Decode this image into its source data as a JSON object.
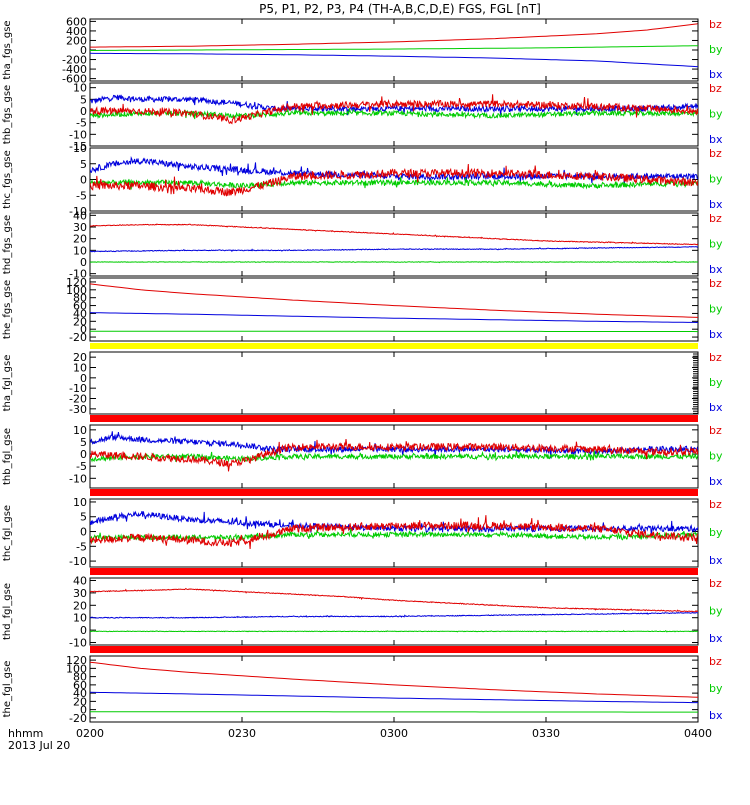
{
  "chart_data": {
    "type": "line",
    "title": "P5, P1, P2, P3, P4 (TH-A,B,C,D,E) FGS, FGL [nT]",
    "x_axis": {
      "label_top": "hhmm",
      "label_bottom": "2013 Jul 20",
      "range_minutes": [
        0,
        120
      ],
      "ticks": [
        {
          "label": "0200",
          "minute": 0
        },
        {
          "label": "0230",
          "minute": 30
        },
        {
          "label": "0300",
          "minute": 60
        },
        {
          "label": "0330",
          "minute": 90
        },
        {
          "label": "0400",
          "minute": 120
        }
      ]
    },
    "colors": {
      "bz": "#e00000",
      "by": "#00cc00",
      "bx": "#0000dd",
      "band_red": "#ff0000",
      "band_yellow": "#ffff00"
    },
    "panels": [
      {
        "ylabel": "tha_fgs_gse",
        "ylim": [
          -650,
          650
        ],
        "yticks": [
          "600",
          "400",
          "200",
          "0",
          "-200",
          "-400",
          "-600"
        ],
        "ytick_values": [
          600,
          400,
          200,
          0,
          -200,
          -400,
          -600
        ],
        "legend": [
          "bz",
          "by",
          "bx"
        ],
        "series": [
          {
            "name": "bz",
            "noise": 0,
            "x": [
              0,
              20,
              40,
              60,
              80,
              100,
              110,
              120
            ],
            "y": [
              60,
              80,
              120,
              170,
              240,
              340,
              420,
              550
            ]
          },
          {
            "name": "by",
            "noise": 0,
            "x": [
              0,
              30,
              60,
              90,
              120
            ],
            "y": [
              -10,
              5,
              20,
              45,
              90
            ]
          },
          {
            "name": "bx",
            "noise": 0,
            "x": [
              0,
              20,
              40,
              60,
              80,
              100,
              120
            ],
            "y": [
              -70,
              -80,
              -100,
              -130,
              -170,
              -230,
              -350
            ]
          }
        ]
      },
      {
        "ylabel": "thb_fgs_gse",
        "ylim": [
          -15,
          12
        ],
        "yticks": [
          "10",
          "5",
          "0",
          "-5",
          "-10",
          "-15"
        ],
        "ytick_values": [
          10,
          5,
          0,
          -5,
          -10,
          -15
        ],
        "legend": [
          "bz",
          "by",
          "bx"
        ],
        "series": [
          {
            "name": "bx",
            "noise": 1.2,
            "x": [
              0,
              5,
              10,
              20,
              30,
              36,
              40,
              60,
              80,
              100,
              110,
              120
            ],
            "y": [
              4,
              6,
              5,
              5,
              3,
              1,
              1,
              1,
              1,
              1,
              1,
              2
            ]
          },
          {
            "name": "by",
            "noise": 1.0,
            "x": [
              0,
              10,
              20,
              30,
              40,
              60,
              80,
              100,
              120
            ],
            "y": [
              -2,
              -1,
              -1,
              -2,
              -1,
              -1,
              -2,
              -1,
              -1
            ]
          },
          {
            "name": "bz",
            "noise": 1.5,
            "x": [
              0,
              10,
              20,
              28,
              32,
              36,
              40,
              60,
              80,
              100,
              110,
              120
            ],
            "y": [
              0,
              0,
              -1,
              -4,
              -2,
              0,
              2,
              3,
              3,
              2,
              1,
              0
            ]
          }
        ]
      },
      {
        "ylabel": "thc_fgs_gse",
        "ylim": [
          -10,
          10
        ],
        "yticks": [
          "10",
          "5",
          "0",
          "-5",
          "-10"
        ],
        "ytick_values": [
          10,
          5,
          0,
          -5,
          -10
        ],
        "legend": [
          "bz",
          "by",
          "bx"
        ],
        "series": [
          {
            "name": "bx",
            "noise": 1.0,
            "x": [
              0,
              5,
              10,
              20,
              30,
              40,
              60,
              80,
              100,
              110,
              120
            ],
            "y": [
              3,
              5,
              6,
              4,
              3,
              2,
              1,
              1,
              1,
              1,
              1
            ]
          },
          {
            "name": "by",
            "noise": 0.8,
            "x": [
              0,
              10,
              20,
              30,
              40,
              60,
              80,
              100,
              120
            ],
            "y": [
              -1,
              -1,
              -1,
              -2,
              -1,
              -1,
              -1,
              -2,
              -1
            ]
          },
          {
            "name": "bz",
            "noise": 1.3,
            "x": [
              0,
              10,
              20,
              28,
              36,
              40,
              60,
              80,
              100,
              110,
              120
            ],
            "y": [
              -2,
              -2,
              -3,
              -4,
              -1,
              1,
              2,
              2,
              1,
              0,
              -1
            ]
          }
        ]
      },
      {
        "ylabel": "thd_fgs_gse",
        "ylim": [
          -12,
          42
        ],
        "yticks": [
          "40",
          "30",
          "20",
          "10",
          "0",
          "-10"
        ],
        "ytick_values": [
          40,
          30,
          20,
          10,
          0,
          -10
        ],
        "legend": [
          "bz",
          "by",
          "bx"
        ],
        "series": [
          {
            "name": "bz",
            "noise": 0.3,
            "x": [
              0,
              10,
              20,
              30,
              40,
              50,
              60,
              70,
              80,
              90,
              100,
              110,
              120
            ],
            "y": [
              31,
              32,
              32,
              30,
              28,
              26,
              24,
              22,
              20,
              18,
              17,
              16,
              15
            ]
          },
          {
            "name": "bx",
            "noise": 0.3,
            "x": [
              0,
              20,
              40,
              60,
              80,
              100,
              120
            ],
            "y": [
              9,
              10,
              10,
              11,
              11,
              12,
              13
            ]
          },
          {
            "name": "by",
            "noise": 0.2,
            "x": [
              0,
              120
            ],
            "y": [
              0,
              0
            ]
          }
        ]
      },
      {
        "ylabel": "the_fgs_gse",
        "ylim": [
          -30,
          130
        ],
        "yticks": [
          "120",
          "100",
          "80",
          "60",
          "40",
          "20",
          "0",
          "-20"
        ],
        "ytick_values": [
          120,
          100,
          80,
          60,
          40,
          20,
          0,
          -20
        ],
        "legend": [
          "bz",
          "by",
          "bx"
        ],
        "series": [
          {
            "name": "bz",
            "noise": 0,
            "x": [
              0,
              10,
              20,
              30,
              40,
              60,
              80,
              100,
              120
            ],
            "y": [
              115,
              100,
              90,
              82,
              74,
              60,
              48,
              38,
              30
            ]
          },
          {
            "name": "bx",
            "noise": 0,
            "x": [
              0,
              20,
              40,
              60,
              80,
              100,
              120
            ],
            "y": [
              42,
              38,
              33,
              28,
              24,
              20,
              17
            ]
          },
          {
            "name": "by",
            "noise": 0,
            "x": [
              0,
              120
            ],
            "y": [
              -5,
              -6
            ]
          }
        ]
      },
      {
        "ylabel": "tha_fgl_gse",
        "ylim": [
          -35,
          25
        ],
        "yticks": [
          "20",
          "10",
          "0",
          "-10",
          "-20",
          "-30"
        ],
        "ytick_values": [
          20,
          10,
          0,
          -10,
          -20,
          -30
        ],
        "legend": [
          "bz",
          "by",
          "bx"
        ],
        "series": []
      },
      {
        "ylabel": "thb_fgl_gse",
        "ylim": [
          -14,
          12
        ],
        "yticks": [
          "10",
          "5",
          "0",
          "-5",
          "-10"
        ],
        "ytick_values": [
          10,
          5,
          0,
          -5,
          -10
        ],
        "legend": [
          "bz",
          "by",
          "bx"
        ],
        "series": [
          {
            "name": "bx",
            "noise": 1.2,
            "x": [
              0,
              5,
              10,
              20,
              30,
              36,
              40,
              60,
              80,
              100,
              110,
              120
            ],
            "y": [
              5,
              7,
              6,
              5,
              4,
              2,
              2,
              2,
              2,
              1,
              2,
              2
            ]
          },
          {
            "name": "by",
            "noise": 1.0,
            "x": [
              0,
              10,
              20,
              30,
              40,
              60,
              80,
              100,
              120
            ],
            "y": [
              -2,
              -1,
              -1,
              -2,
              -1,
              -1,
              -1,
              -1,
              -1
            ]
          },
          {
            "name": "bz",
            "noise": 1.5,
            "x": [
              0,
              10,
              20,
              28,
              32,
              36,
              40,
              60,
              80,
              100,
              110,
              120
            ],
            "y": [
              0,
              -1,
              -2,
              -4,
              -2,
              1,
              3,
              3,
              3,
              2,
              1,
              1
            ]
          }
        ]
      },
      {
        "ylabel": "thc_fgl_gse",
        "ylim": [
          -12,
          11
        ],
        "yticks": [
          "10",
          "5",
          "0",
          "-5",
          "-10"
        ],
        "ytick_values": [
          10,
          5,
          0,
          -5,
          -10
        ],
        "legend": [
          "bz",
          "by",
          "bx"
        ],
        "series": [
          {
            "name": "bx",
            "noise": 1.0,
            "x": [
              0,
              5,
              10,
              20,
              30,
              40,
              60,
              80,
              100,
              110,
              120
            ],
            "y": [
              3,
              5,
              6,
              4,
              3,
              2,
              1,
              1,
              1,
              1,
              1
            ]
          },
          {
            "name": "by",
            "noise": 0.8,
            "x": [
              0,
              10,
              20,
              30,
              40,
              60,
              80,
              100,
              120
            ],
            "y": [
              -2,
              -2,
              -2,
              -2,
              -1,
              -1,
              -1,
              -2,
              -1
            ]
          },
          {
            "name": "bz",
            "noise": 1.3,
            "x": [
              0,
              10,
              20,
              28,
              36,
              40,
              60,
              80,
              100,
              110,
              120
            ],
            "y": [
              -3,
              -2,
              -3,
              -4,
              -1,
              1,
              2,
              2,
              1,
              -1,
              -2
            ]
          }
        ]
      },
      {
        "ylabel": "thd_fgl_gse",
        "ylim": [
          -12,
          42
        ],
        "yticks": [
          "40",
          "30",
          "20",
          "10",
          "0",
          "-10"
        ],
        "ytick_values": [
          40,
          30,
          20,
          10,
          0,
          -10
        ],
        "legend": [
          "bz",
          "by",
          "bx"
        ],
        "series": [
          {
            "name": "bz",
            "noise": 0.3,
            "x": [
              0,
              10,
              20,
              30,
              40,
              50,
              60,
              70,
              80,
              90,
              100,
              110,
              120
            ],
            "y": [
              31,
              32,
              33,
              31,
              29,
              27,
              24,
              22,
              20,
              18,
              17,
              16,
              15
            ]
          },
          {
            "name": "bx",
            "noise": 0.3,
            "x": [
              0,
              20,
              40,
              60,
              80,
              100,
              120
            ],
            "y": [
              10,
              10,
              11,
              11,
              12,
              13,
              14
            ]
          },
          {
            "name": "by",
            "noise": 0.2,
            "x": [
              0,
              120
            ],
            "y": [
              -1,
              -1
            ]
          }
        ]
      },
      {
        "ylabel": "the_fgl_gse",
        "ylim": [
          -30,
          130
        ],
        "yticks": [
          "120",
          "100",
          "80",
          "60",
          "40",
          "20",
          "0",
          "-20"
        ],
        "ytick_values": [
          120,
          100,
          80,
          60,
          40,
          20,
          0,
          -20
        ],
        "legend": [
          "bz",
          "by",
          "bx"
        ],
        "series": [
          {
            "name": "bz",
            "noise": 0,
            "x": [
              0,
              10,
              20,
              30,
              40,
              60,
              80,
              100,
              120
            ],
            "y": [
              115,
              100,
              90,
              82,
              74,
              60,
              48,
              38,
              30
            ]
          },
          {
            "name": "bx",
            "noise": 0,
            "x": [
              0,
              20,
              40,
              60,
              80,
              100,
              120
            ],
            "y": [
              42,
              38,
              33,
              28,
              24,
              20,
              17
            ]
          },
          {
            "name": "by",
            "noise": 0,
            "x": [
              0,
              120
            ],
            "y": [
              -5,
              -6
            ]
          }
        ]
      }
    ]
  }
}
